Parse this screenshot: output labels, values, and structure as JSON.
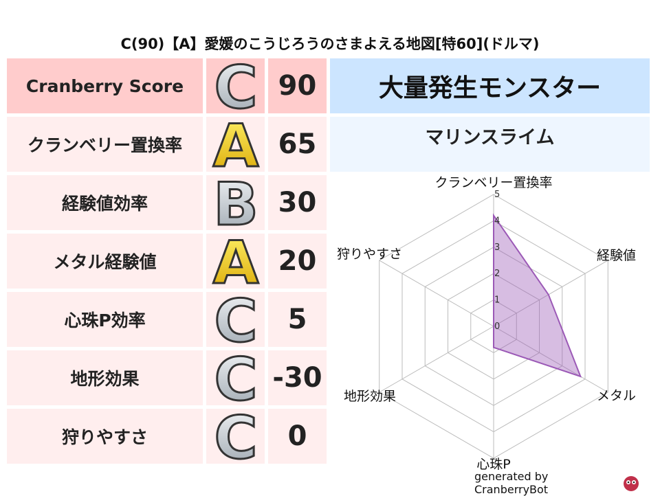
{
  "title": "C(90)【A】愛媛のこうじろうのさまよえる地図[特60](ドルマ)",
  "rows": [
    {
      "label": "Cranberry Score",
      "grade": "C",
      "value": "90"
    },
    {
      "label": "クランベリー置換率",
      "grade": "A",
      "value": "65"
    },
    {
      "label": "経験値効率",
      "grade": "B",
      "value": "30"
    },
    {
      "label": "メタル経験値",
      "grade": "A",
      "value": "20"
    },
    {
      "label": "心珠P効率",
      "grade": "C",
      "value": "5"
    },
    {
      "label": "地形効果",
      "grade": "C",
      "value": "-30"
    },
    {
      "label": "狩りやすさ",
      "grade": "C",
      "value": "0"
    }
  ],
  "monster": {
    "header": "大量発生モンスター",
    "name": "マリンスライム"
  },
  "chart_data": {
    "type": "radar",
    "axes": [
      "クランベリー置換率",
      "経験値",
      "メタル",
      "心珠P",
      "地形効果",
      "狩りやすさ"
    ],
    "values": [
      4.2,
      2.4,
      3.8,
      0.8,
      0,
      0
    ],
    "ticks": [
      "0",
      "1",
      "2",
      "3",
      "4",
      "5"
    ],
    "range": [
      0,
      5
    ],
    "color": "#9b59b6"
  },
  "footer": "generated by CranberryBot"
}
